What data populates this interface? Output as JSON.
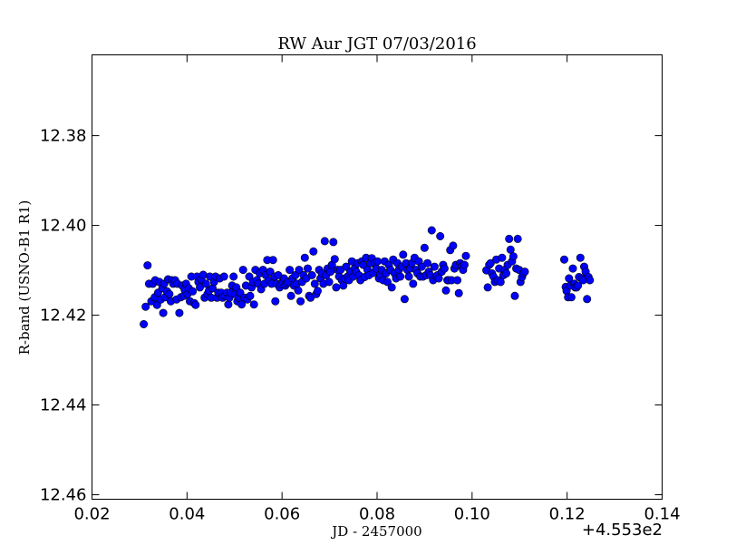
{
  "chart_data": {
    "type": "scatter",
    "title": "RW Aur JGT 07/03/2016",
    "xlabel": "JD - 2457000",
    "ylabel": "R-band (USNO-B1 R1)",
    "x_offset_label": "+4.553e2",
    "xlim": [
      0.02,
      0.14
    ],
    "ylim": [
      12.461,
      12.362
    ],
    "y_inverted": true,
    "x_ticks": [
      0.02,
      0.04,
      0.06,
      0.08,
      0.1,
      0.12,
      0.14
    ],
    "x_tick_labels": [
      "0.02",
      "0.04",
      "0.06",
      "0.08",
      "0.10",
      "0.12",
      "0.14"
    ],
    "y_ticks": [
      12.38,
      12.4,
      12.42,
      12.44,
      12.46
    ],
    "y_tick_labels": [
      "12.38",
      "12.40",
      "12.42",
      "12.44",
      "12.46"
    ],
    "grid": false,
    "marker_color": "#0000ff",
    "points": [
      [
        0.0309,
        12.422
      ],
      [
        0.0313,
        12.4181
      ],
      [
        0.0317,
        12.4089
      ],
      [
        0.032,
        12.413
      ],
      [
        0.0325,
        12.4169
      ],
      [
        0.0328,
        12.413
      ],
      [
        0.0332,
        12.416
      ],
      [
        0.0333,
        12.4122
      ],
      [
        0.0337,
        12.4177
      ],
      [
        0.0339,
        12.415
      ],
      [
        0.0342,
        12.4126
      ],
      [
        0.0345,
        12.4165
      ],
      [
        0.0348,
        12.414
      ],
      [
        0.035,
        12.4195
      ],
      [
        0.0352,
        12.413
      ],
      [
        0.0354,
        12.416
      ],
      [
        0.0358,
        12.4147
      ],
      [
        0.036,
        12.412
      ],
      [
        0.0363,
        12.4153
      ],
      [
        0.0366,
        12.4169
      ],
      [
        0.0368,
        12.4122
      ],
      [
        0.0371,
        12.413
      ],
      [
        0.0375,
        12.4122
      ],
      [
        0.0378,
        12.4165
      ],
      [
        0.038,
        12.413
      ],
      [
        0.0384,
        12.4195
      ],
      [
        0.0387,
        12.416
      ],
      [
        0.039,
        12.4134
      ],
      [
        0.0393,
        12.4157
      ],
      [
        0.0395,
        12.4143
      ],
      [
        0.0398,
        12.413
      ],
      [
        0.0401,
        12.4153
      ],
      [
        0.0404,
        12.414
      ],
      [
        0.0406,
        12.4169
      ],
      [
        0.0409,
        12.4114
      ],
      [
        0.0412,
        12.4147
      ],
      [
        0.0415,
        12.4173
      ],
      [
        0.0418,
        12.4177
      ],
      [
        0.0421,
        12.4114
      ],
      [
        0.0424,
        12.4126
      ],
      [
        0.0427,
        12.4138
      ],
      [
        0.043,
        12.412
      ],
      [
        0.0434,
        12.411
      ],
      [
        0.0437,
        12.4161
      ],
      [
        0.044,
        12.413
      ],
      [
        0.0443,
        12.4153
      ],
      [
        0.0446,
        12.4146
      ],
      [
        0.0448,
        12.4114
      ],
      [
        0.0451,
        12.4161
      ],
      [
        0.0454,
        12.414
      ],
      [
        0.0457,
        12.4126
      ],
      [
        0.046,
        12.4114
      ],
      [
        0.0463,
        12.4161
      ],
      [
        0.0466,
        12.415
      ],
      [
        0.0469,
        12.4118
      ],
      [
        0.0472,
        12.415
      ],
      [
        0.0475,
        12.4161
      ],
      [
        0.0478,
        12.4114
      ],
      [
        0.048,
        12.4157
      ],
      [
        0.0484,
        12.415
      ],
      [
        0.0487,
        12.4176
      ],
      [
        0.0489,
        12.4161
      ],
      [
        0.0492,
        12.415
      ],
      [
        0.0495,
        12.4134
      ],
      [
        0.0498,
        12.4114
      ],
      [
        0.0501,
        12.4153
      ],
      [
        0.0504,
        12.4138
      ],
      [
        0.0506,
        12.4169
      ],
      [
        0.0509,
        12.4161
      ],
      [
        0.0512,
        12.415
      ],
      [
        0.0515,
        12.4176
      ],
      [
        0.0518,
        12.4099
      ],
      [
        0.0521,
        12.4161
      ],
      [
        0.0524,
        12.4134
      ],
      [
        0.0527,
        12.4165
      ],
      [
        0.0531,
        12.4114
      ],
      [
        0.0533,
        12.4157
      ],
      [
        0.0536,
        12.4138
      ],
      [
        0.0539,
        12.4126
      ],
      [
        0.0541,
        12.4176
      ],
      [
        0.0544,
        12.4099
      ],
      [
        0.0547,
        12.4122
      ],
      [
        0.055,
        12.413
      ],
      [
        0.0553,
        12.4107
      ],
      [
        0.0556,
        12.4142
      ],
      [
        0.056,
        12.4099
      ],
      [
        0.0563,
        12.413
      ],
      [
        0.0566,
        12.4111
      ],
      [
        0.0569,
        12.4077
      ],
      [
        0.0572,
        12.4122
      ],
      [
        0.0575,
        12.4103
      ],
      [
        0.0578,
        12.413
      ],
      [
        0.0581,
        12.4077
      ],
      [
        0.0584,
        12.4114
      ],
      [
        0.0586,
        12.4169
      ],
      [
        0.0589,
        12.413
      ],
      [
        0.0592,
        12.4111
      ],
      [
        0.0595,
        12.4138
      ],
      [
        0.0598,
        12.413
      ],
      [
        0.0601,
        12.4126
      ],
      [
        0.0604,
        12.4118
      ],
      [
        0.0607,
        12.4134
      ],
      [
        0.061,
        12.413
      ],
      [
        0.0613,
        12.4126
      ],
      [
        0.0616,
        12.4099
      ],
      [
        0.0619,
        12.4157
      ],
      [
        0.0622,
        12.4118
      ],
      [
        0.0625,
        12.4134
      ],
      [
        0.0628,
        12.4111
      ],
      [
        0.0631,
        12.413
      ],
      [
        0.0634,
        12.4145
      ],
      [
        0.0636,
        12.4099
      ],
      [
        0.0639,
        12.4169
      ],
      [
        0.0642,
        12.4126
      ],
      [
        0.0645,
        12.4111
      ],
      [
        0.0648,
        12.4072
      ],
      [
        0.0651,
        12.4118
      ],
      [
        0.0654,
        12.4096
      ],
      [
        0.0657,
        12.4157
      ],
      [
        0.066,
        12.4161
      ],
      [
        0.0663,
        12.4111
      ],
      [
        0.0666,
        12.4058
      ],
      [
        0.0669,
        12.413
      ],
      [
        0.0672,
        12.4153
      ],
      [
        0.0675,
        12.4146
      ],
      [
        0.0678,
        12.4099
      ],
      [
        0.0681,
        12.4118
      ],
      [
        0.0684,
        12.4107
      ],
      [
        0.0687,
        12.413
      ],
      [
        0.069,
        12.4035
      ],
      [
        0.0693,
        12.4111
      ],
      [
        0.0696,
        12.4096
      ],
      [
        0.0699,
        12.4126
      ],
      [
        0.0702,
        12.4103
      ],
      [
        0.0705,
        12.4088
      ],
      [
        0.0708,
        12.4037
      ],
      [
        0.0711,
        12.4075
      ],
      [
        0.0714,
        12.4138
      ],
      [
        0.0717,
        12.4099
      ],
      [
        0.072,
        12.4114
      ],
      [
        0.0723,
        12.4099
      ],
      [
        0.0726,
        12.4122
      ],
      [
        0.0729,
        12.4134
      ],
      [
        0.0732,
        12.4118
      ],
      [
        0.0735,
        12.4092
      ],
      [
        0.0738,
        12.4114
      ],
      [
        0.0741,
        12.4122
      ],
      [
        0.0744,
        12.4103
      ],
      [
        0.0747,
        12.408
      ],
      [
        0.075,
        12.4114
      ],
      [
        0.0753,
        12.4096
      ],
      [
        0.0756,
        12.4103
      ],
      [
        0.0759,
        12.4084
      ],
      [
        0.0762,
        12.4111
      ],
      [
        0.0765,
        12.4122
      ],
      [
        0.0768,
        12.408
      ],
      [
        0.0771,
        12.4088
      ],
      [
        0.0774,
        12.4115
      ],
      [
        0.0777,
        12.4072
      ],
      [
        0.078,
        12.4099
      ],
      [
        0.0783,
        12.4111
      ],
      [
        0.0786,
        12.4084
      ],
      [
        0.0789,
        12.4073
      ],
      [
        0.0792,
        12.4106
      ],
      [
        0.0795,
        12.4084
      ],
      [
        0.0798,
        12.4096
      ],
      [
        0.0801,
        12.408
      ],
      [
        0.0804,
        12.4118
      ],
      [
        0.0807,
        12.4111
      ],
      [
        0.081,
        12.4099
      ],
      [
        0.0813,
        12.4122
      ],
      [
        0.0816,
        12.408
      ],
      [
        0.0819,
        12.4107
      ],
      [
        0.0822,
        12.4126
      ],
      [
        0.0825,
        12.4088
      ],
      [
        0.0828,
        12.4099
      ],
      [
        0.0831,
        12.4138
      ],
      [
        0.0834,
        12.4076
      ],
      [
        0.0837,
        12.4107
      ],
      [
        0.084,
        12.4118
      ],
      [
        0.0843,
        12.4084
      ],
      [
        0.0846,
        12.4099
      ],
      [
        0.0849,
        12.4114
      ],
      [
        0.0852,
        12.4092
      ],
      [
        0.0855,
        12.4065
      ],
      [
        0.0858,
        12.4164
      ],
      [
        0.0861,
        12.4084
      ],
      [
        0.0864,
        12.4099
      ],
      [
        0.0867,
        12.4114
      ],
      [
        0.087,
        12.4096
      ],
      [
        0.0873,
        12.4084
      ],
      [
        0.0876,
        12.413
      ],
      [
        0.0879,
        12.4072
      ],
      [
        0.0882,
        12.4099
      ],
      [
        0.0885,
        12.4107
      ],
      [
        0.0888,
        12.408
      ],
      [
        0.0891,
        12.4114
      ],
      [
        0.0894,
        12.4092
      ],
      [
        0.0897,
        12.4114
      ],
      [
        0.09,
        12.405
      ],
      [
        0.0903,
        12.4111
      ],
      [
        0.0906,
        12.4084
      ],
      [
        0.0909,
        12.4103
      ],
      [
        0.0912,
        12.4111
      ],
      [
        0.0915,
        12.4011
      ],
      [
        0.0918,
        12.4122
      ],
      [
        0.0921,
        12.4092
      ],
      [
        0.0924,
        12.4114
      ],
      [
        0.0927,
        12.4111
      ],
      [
        0.093,
        12.4118
      ],
      [
        0.0933,
        12.4024
      ],
      [
        0.0936,
        12.4103
      ],
      [
        0.0939,
        12.4088
      ],
      [
        0.0942,
        12.4096
      ],
      [
        0.0945,
        12.4145
      ],
      [
        0.0948,
        12.4122
      ],
      [
        0.0951,
        12.4122
      ],
      [
        0.0954,
        12.4055
      ],
      [
        0.0957,
        12.4122
      ],
      [
        0.096,
        12.4045
      ],
      [
        0.0963,
        12.4096
      ],
      [
        0.0966,
        12.4088
      ],
      [
        0.0969,
        12.4122
      ],
      [
        0.0972,
        12.4151
      ],
      [
        0.0975,
        12.4084
      ],
      [
        0.0978,
        12.4092
      ],
      [
        0.0981,
        12.4099
      ],
      [
        0.0984,
        12.4088
      ],
      [
        0.0987,
        12.4068
      ],
      [
        0.103,
        12.41
      ],
      [
        0.1033,
        12.4138
      ],
      [
        0.1036,
        12.4088
      ],
      [
        0.1039,
        12.4084
      ],
      [
        0.1042,
        12.4107
      ],
      [
        0.1045,
        12.4114
      ],
      [
        0.1048,
        12.4126
      ],
      [
        0.1051,
        12.4076
      ],
      [
        0.1054,
        12.4122
      ],
      [
        0.1057,
        12.4096
      ],
      [
        0.106,
        12.4126
      ],
      [
        0.1063,
        12.4072
      ],
      [
        0.1066,
        12.4111
      ],
      [
        0.1069,
        12.4099
      ],
      [
        0.1072,
        12.4107
      ],
      [
        0.1075,
        12.4088
      ],
      [
        0.1078,
        12.403
      ],
      [
        0.1081,
        12.4054
      ],
      [
        0.1084,
        12.408
      ],
      [
        0.1087,
        12.4069
      ],
      [
        0.109,
        12.4157
      ],
      [
        0.1093,
        12.4096
      ],
      [
        0.1096,
        12.403
      ],
      [
        0.1099,
        12.4099
      ],
      [
        0.1102,
        12.4126
      ],
      [
        0.1105,
        12.4115
      ],
      [
        0.1108,
        12.4107
      ],
      [
        0.1111,
        12.4103
      ],
      [
        0.1194,
        12.4076
      ],
      [
        0.1197,
        12.4137
      ],
      [
        0.1199,
        12.4146
      ],
      [
        0.1202,
        12.416
      ],
      [
        0.1204,
        12.4118
      ],
      [
        0.1207,
        12.4134
      ],
      [
        0.1209,
        12.416
      ],
      [
        0.1212,
        12.4096
      ],
      [
        0.1215,
        12.413
      ],
      [
        0.1217,
        12.4138
      ],
      [
        0.122,
        12.4138
      ],
      [
        0.1223,
        12.4134
      ],
      [
        0.1225,
        12.4115
      ],
      [
        0.1228,
        12.4072
      ],
      [
        0.1231,
        12.4118
      ],
      [
        0.1234,
        12.4122
      ],
      [
        0.1236,
        12.4092
      ],
      [
        0.1239,
        12.4103
      ],
      [
        0.1242,
        12.4164
      ],
      [
        0.1245,
        12.4115
      ],
      [
        0.1248,
        12.4122
      ]
    ]
  }
}
